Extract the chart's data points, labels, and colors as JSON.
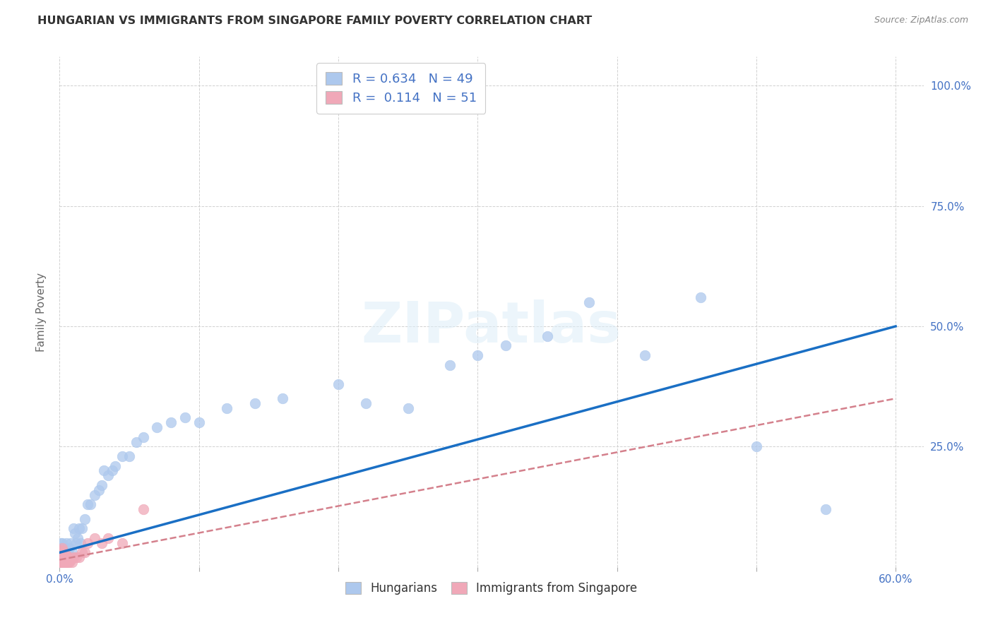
{
  "title": "HUNGARIAN VS IMMIGRANTS FROM SINGAPORE FAMILY POVERTY CORRELATION CHART",
  "source": "Source: ZipAtlas.com",
  "ylabel": "Family Poverty",
  "watermark": "ZIPatlas",
  "legend_r1": "R = 0.634",
  "legend_n1": "N = 49",
  "legend_r2": "R = 0.114",
  "legend_n2": "N = 51",
  "blue_color": "#adc8ed",
  "pink_color": "#f0a8b8",
  "line_blue": "#1a6fc4",
  "line_pink_dash": "#d4808c",
  "axis_label_color": "#4472c4",
  "grid_color": "#cccccc",
  "background": "#ffffff",
  "blue_scatter_x": [
    0.001,
    0.002,
    0.003,
    0.004,
    0.005,
    0.006,
    0.007,
    0.008,
    0.009,
    0.01,
    0.011,
    0.012,
    0.013,
    0.014,
    0.015,
    0.016,
    0.018,
    0.02,
    0.022,
    0.025,
    0.028,
    0.03,
    0.032,
    0.035,
    0.038,
    0.04,
    0.045,
    0.05,
    0.055,
    0.06,
    0.07,
    0.08,
    0.09,
    0.1,
    0.12,
    0.14,
    0.16,
    0.2,
    0.22,
    0.25,
    0.28,
    0.3,
    0.32,
    0.35,
    0.38,
    0.42,
    0.46,
    0.5,
    0.55
  ],
  "blue_scatter_y": [
    0.05,
    0.05,
    0.04,
    0.03,
    0.05,
    0.03,
    0.04,
    0.05,
    0.03,
    0.08,
    0.07,
    0.05,
    0.06,
    0.08,
    0.05,
    0.08,
    0.1,
    0.13,
    0.13,
    0.15,
    0.16,
    0.17,
    0.2,
    0.19,
    0.2,
    0.21,
    0.23,
    0.23,
    0.26,
    0.27,
    0.29,
    0.3,
    0.31,
    0.3,
    0.33,
    0.34,
    0.35,
    0.38,
    0.34,
    0.33,
    0.42,
    0.44,
    0.46,
    0.48,
    0.55,
    0.44,
    0.56,
    0.25,
    0.12
  ],
  "pink_scatter_x": [
    0.001,
    0.001,
    0.001,
    0.001,
    0.001,
    0.001,
    0.001,
    0.001,
    0.002,
    0.002,
    0.002,
    0.002,
    0.002,
    0.002,
    0.002,
    0.002,
    0.002,
    0.003,
    0.003,
    0.003,
    0.003,
    0.003,
    0.003,
    0.003,
    0.003,
    0.004,
    0.004,
    0.004,
    0.004,
    0.005,
    0.005,
    0.005,
    0.005,
    0.006,
    0.006,
    0.006,
    0.007,
    0.007,
    0.008,
    0.009,
    0.01,
    0.012,
    0.014,
    0.016,
    0.018,
    0.02,
    0.025,
    0.03,
    0.035,
    0.045,
    0.06
  ],
  "pink_scatter_y": [
    0.01,
    0.015,
    0.02,
    0.025,
    0.03,
    0.035,
    0.01,
    0.015,
    0.01,
    0.015,
    0.02,
    0.025,
    0.03,
    0.035,
    0.04,
    0.01,
    0.015,
    0.01,
    0.015,
    0.02,
    0.025,
    0.03,
    0.01,
    0.015,
    0.02,
    0.01,
    0.015,
    0.02,
    0.025,
    0.01,
    0.015,
    0.02,
    0.025,
    0.01,
    0.015,
    0.02,
    0.01,
    0.015,
    0.015,
    0.01,
    0.02,
    0.02,
    0.02,
    0.03,
    0.03,
    0.05,
    0.06,
    0.05,
    0.06,
    0.05,
    0.12
  ],
  "blue_line_x": [
    0.0,
    0.6
  ],
  "blue_line_y": [
    0.03,
    0.5
  ],
  "pink_line_x": [
    0.0,
    0.6
  ],
  "pink_line_y": [
    0.015,
    0.35
  ],
  "xlim": [
    0.0,
    0.62
  ],
  "ylim": [
    0.0,
    1.06
  ],
  "xticks": [
    0.0,
    0.1,
    0.2,
    0.3,
    0.4,
    0.5,
    0.6
  ],
  "yticks": [
    0.0,
    0.25,
    0.5,
    0.75,
    1.0
  ],
  "xticklabels": [
    "0.0%",
    "",
    "",
    "",
    "",
    "",
    "60.0%"
  ],
  "yticklabels": [
    "",
    "25.0%",
    "50.0%",
    "75.0%",
    "100.0%"
  ]
}
